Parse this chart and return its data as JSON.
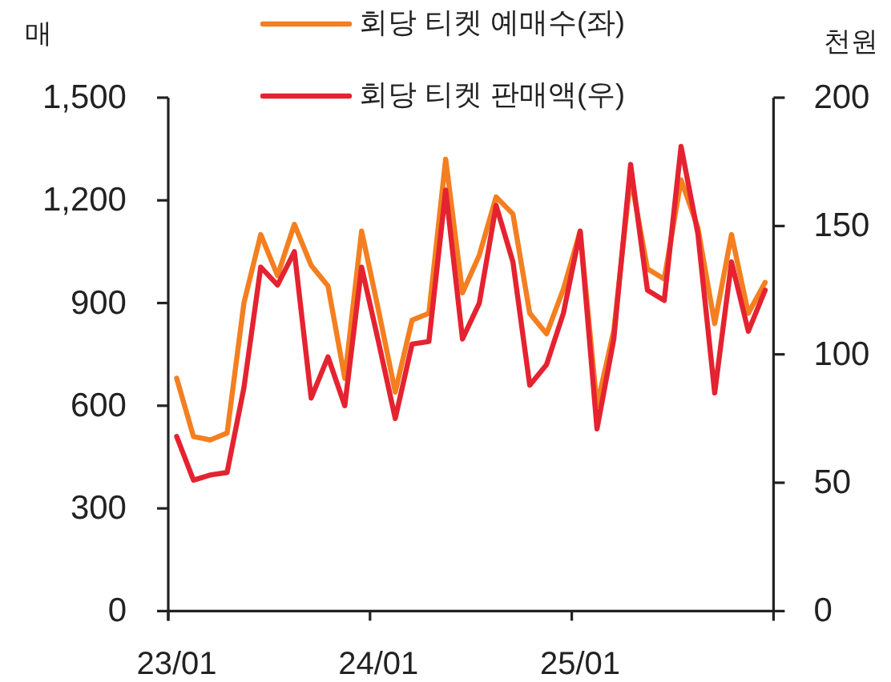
{
  "chart_data": {
    "type": "line",
    "ylabel": "매",
    "y2label": "천원",
    "categories": [
      "23/01",
      null,
      null,
      null,
      null,
      null,
      null,
      null,
      null,
      null,
      null,
      null,
      "24/01",
      null,
      null,
      null,
      null,
      null,
      null,
      null,
      null,
      null,
      null,
      null,
      "25/01",
      null,
      null,
      null,
      null,
      null,
      null,
      null,
      null,
      null,
      null,
      null
    ],
    "ylim": [
      0,
      1500
    ],
    "yticks": [
      0,
      300,
      600,
      900,
      {
        "value": 1200,
        "label": "1,200"
      },
      {
        "value": 1500,
        "label": "1,500"
      }
    ],
    "y2lim": [
      0,
      200
    ],
    "y2ticks": [
      0,
      50,
      100,
      150,
      200
    ],
    "series": [
      {
        "name": "회당 티켓 예매수(좌)",
        "color": "#f47f20",
        "values": [
          680,
          510,
          500,
          520,
          900,
          1100,
          980,
          1130,
          1010,
          950,
          680,
          1110,
          880,
          640,
          850,
          870,
          1320,
          930,
          1040,
          1210,
          1160,
          870,
          810,
          940,
          1110,
          600,
          820,
          1270,
          1000,
          970,
          1260,
          1120,
          840,
          1100,
          870,
          960
        ]
      },
      {
        "name": "회당 티켓 판매액(우)",
        "color": "#e52330",
        "axis": "y2",
        "values": [
          68,
          51,
          53,
          54,
          87,
          134,
          127,
          140,
          83,
          99,
          80,
          134,
          105,
          75,
          104,
          105,
          164,
          106,
          120,
          158,
          136,
          88,
          96,
          116,
          148,
          71,
          106,
          174,
          125,
          121,
          181,
          147,
          85,
          136,
          109,
          125
        ]
      }
    ],
    "legend": "top"
  }
}
